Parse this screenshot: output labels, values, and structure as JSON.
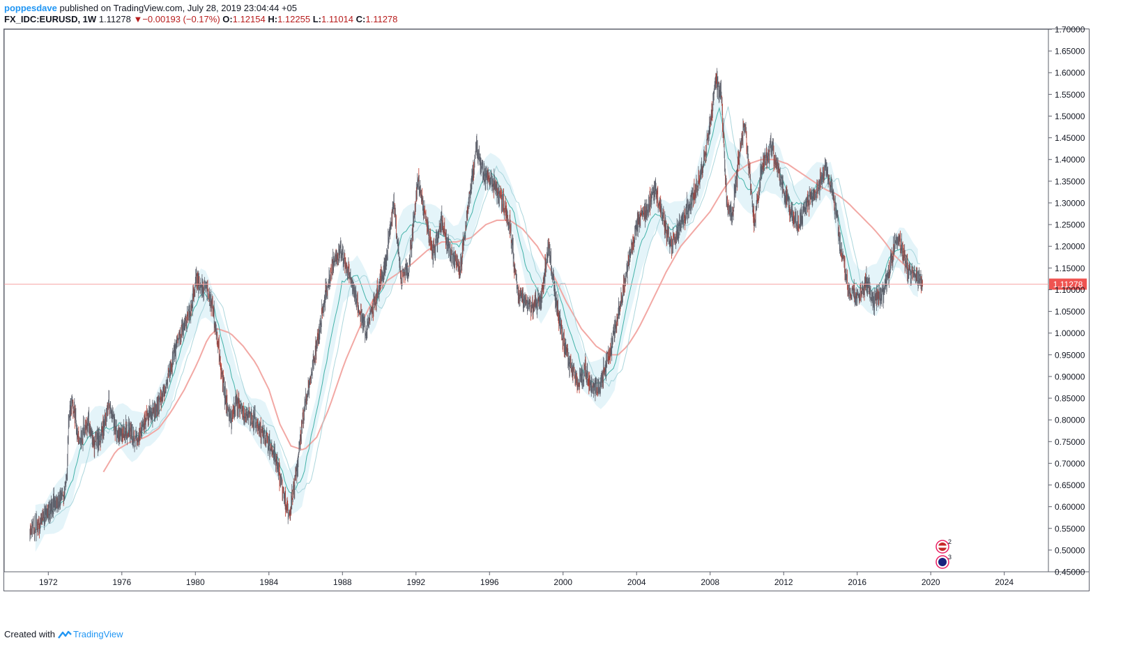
{
  "header": {
    "author": "poppesdave",
    "published": "published on TradingView.com, July 28, 2019 23:04:44 +05",
    "symbol": "FX_IDC:EURUSD, 1W",
    "last": "1.11278",
    "change": "−0.00193 (−0.17%)",
    "o_label": "O:",
    "o_value": "1.12154",
    "h_label": "H:",
    "h_value": "1.12255",
    "l_label": "L:",
    "l_value": "1.11014",
    "c_label": "C:",
    "c_value": "1.11278"
  },
  "footer": {
    "created": "Created with",
    "brand": "TradingView",
    "icon": "tradingview-logo-icon"
  },
  "events": [
    {
      "icon": "us-flag-icon",
      "count": "2"
    },
    {
      "icon": "eu-flag-icon",
      "count": "3"
    }
  ],
  "colors": {
    "candle": "#5d606b",
    "candle_red": "#c0392b",
    "ma_pink": "#f2a8a4",
    "ma_teal": "#26a69a",
    "cloud": "#d8f0f7",
    "price_line": "#f7a8a8",
    "price_label": "#ef5350"
  },
  "chart_data": {
    "type": "line",
    "title": "FX_IDC:EURUSD, 1W",
    "y_axis": {
      "side": "right",
      "min": 0.45,
      "max": 1.7,
      "step": 0.05,
      "tick_decimals": 5
    },
    "x_axis": {
      "min": 1969.6,
      "max": 2026.4,
      "ticks": [
        1972,
        1976,
        1980,
        1984,
        1988,
        1992,
        1996,
        2000,
        2004,
        2008,
        2012,
        2016,
        2020,
        2024
      ]
    },
    "last_price": 1.11278,
    "last_price_label": "1.11278",
    "series": [
      {
        "style": "price",
        "x": [
          1971.0,
          1971.5,
          1972.2,
          1972.8,
          1973.0,
          1973.1,
          1973.3,
          1973.7,
          1974.2,
          1974.5,
          1974.9,
          1975.3,
          1975.8,
          1976.3,
          1976.7,
          1977.3,
          1977.8,
          1978.3,
          1978.7,
          1979.2,
          1979.8,
          1980.0,
          1980.4,
          1980.7,
          1981.0,
          1981.3,
          1981.6,
          1981.9,
          1982.3,
          1982.7,
          1983.1,
          1983.5,
          1983.9,
          1984.3,
          1984.7,
          1985.1,
          1985.5,
          1985.9,
          1986.3,
          1986.7,
          1987.1,
          1987.5,
          1987.9,
          1988.4,
          1988.8,
          1989.3,
          1989.8,
          1990.3,
          1990.8,
          1991.2,
          1991.6,
          1992.1,
          1992.6,
          1992.9,
          1993.4,
          1993.9,
          1994.4,
          1994.8,
          1995.3,
          1995.7,
          1996.2,
          1996.7,
          1997.1,
          1997.5,
          1997.8,
          1998.3,
          1998.8,
          1999.2,
          1999.7,
          2000.2,
          2000.8,
          2001.2,
          2001.6,
          2002.0,
          2002.5,
          2003.0,
          2003.5,
          2004.0,
          2004.5,
          2005.0,
          2005.5,
          2005.9,
          2006.4,
          2006.9,
          2007.4,
          2007.9,
          2008.3,
          2008.6,
          2008.9,
          2009.2,
          2009.6,
          2009.9,
          2010.4,
          2010.8,
          2011.3,
          2011.8,
          2012.4,
          2012.8,
          2013.3,
          2013.8,
          2014.3,
          2014.7,
          2015.1,
          2015.5,
          2016.0,
          2016.5,
          2016.9,
          2017.3,
          2017.8,
          2018.1,
          2018.4,
          2018.8,
          2019.2,
          2019.57
        ],
        "y": [
          0.54,
          0.56,
          0.6,
          0.62,
          0.66,
          0.8,
          0.84,
          0.75,
          0.8,
          0.74,
          0.77,
          0.84,
          0.76,
          0.78,
          0.75,
          0.8,
          0.82,
          0.87,
          0.93,
          1.0,
          1.06,
          1.13,
          1.1,
          1.1,
          1.04,
          0.95,
          0.86,
          0.8,
          0.84,
          0.81,
          0.8,
          0.78,
          0.75,
          0.72,
          0.65,
          0.58,
          0.68,
          0.82,
          0.9,
          1.0,
          1.09,
          1.16,
          1.19,
          1.13,
          1.07,
          1.0,
          1.08,
          1.15,
          1.3,
          1.12,
          1.15,
          1.35,
          1.25,
          1.18,
          1.26,
          1.18,
          1.15,
          1.28,
          1.43,
          1.36,
          1.35,
          1.3,
          1.25,
          1.1,
          1.08,
          1.06,
          1.08,
          1.2,
          1.05,
          0.95,
          0.88,
          0.92,
          0.87,
          0.88,
          0.95,
          1.05,
          1.15,
          1.25,
          1.28,
          1.33,
          1.25,
          1.2,
          1.25,
          1.3,
          1.35,
          1.45,
          1.58,
          1.55,
          1.3,
          1.27,
          1.42,
          1.48,
          1.25,
          1.38,
          1.43,
          1.36,
          1.28,
          1.25,
          1.3,
          1.33,
          1.38,
          1.32,
          1.2,
          1.1,
          1.08,
          1.12,
          1.07,
          1.08,
          1.15,
          1.22,
          1.2,
          1.14,
          1.13,
          1.11278
        ]
      },
      {
        "style": "ma_fast",
        "color": "#26a69a",
        "x": [
          1971.3,
          1972.0,
          1972.8,
          1973.3,
          1973.8,
          1974.5,
          1975.2,
          1975.9,
          1976.6,
          1977.5,
          1978.3,
          1979.0,
          1979.7,
          1980.4,
          1981.0,
          1981.6,
          1982.3,
          1983.0,
          1983.8,
          1984.5,
          1985.1,
          1985.8,
          1986.5,
          1987.2,
          1988.0,
          1988.8,
          1989.6,
          1990.4,
          1991.2,
          1992.0,
          1992.8,
          1993.6,
          1994.4,
          1995.2,
          1995.9,
          1996.6,
          1997.3,
          1998.0,
          1998.8,
          1999.6,
          2000.4,
          2001.2,
          2002.0,
          2002.8,
          2003.5,
          2004.2,
          2005.0,
          2005.8,
          2006.5,
          2007.2,
          2007.9,
          2008.5,
          2009.0,
          2009.6,
          2010.3,
          2011.0,
          2011.7,
          2012.4,
          2013.1,
          2013.8,
          2014.5,
          2015.1,
          2015.7,
          2016.4,
          2017.1,
          2017.8,
          2018.4,
          2019.0,
          2019.5
        ],
        "y": [
          0.55,
          0.58,
          0.61,
          0.66,
          0.74,
          0.77,
          0.78,
          0.79,
          0.76,
          0.78,
          0.84,
          0.93,
          1.03,
          1.1,
          1.06,
          0.96,
          0.85,
          0.81,
          0.78,
          0.71,
          0.63,
          0.66,
          0.8,
          0.95,
          1.12,
          1.13,
          1.05,
          1.12,
          1.22,
          1.26,
          1.24,
          1.22,
          1.2,
          1.3,
          1.38,
          1.34,
          1.28,
          1.15,
          1.08,
          1.12,
          1.0,
          0.9,
          0.88,
          0.92,
          1.07,
          1.2,
          1.28,
          1.24,
          1.25,
          1.32,
          1.42,
          1.52,
          1.4,
          1.36,
          1.32,
          1.38,
          1.38,
          1.3,
          1.3,
          1.34,
          1.36,
          1.24,
          1.12,
          1.1,
          1.1,
          1.18,
          1.2,
          1.15,
          1.13
        ]
      },
      {
        "style": "ma_slow",
        "color": "#f2a8a4",
        "x": [
          1975.0,
          1975.7,
          1976.5,
          1977.3,
          1978.0,
          1978.7,
          1979.4,
          1980.1,
          1980.7,
          1981.2,
          1981.9,
          1982.6,
          1983.3,
          1984.0,
          1984.6,
          1985.2,
          1985.9,
          1986.6,
          1987.3,
          1988.1,
          1988.9,
          1989.7,
          1990.4,
          1991.1,
          1991.8,
          1992.6,
          1993.4,
          1994.2,
          1995.0,
          1995.8,
          1996.4,
          1997.1,
          1997.8,
          1998.6,
          1999.4,
          2000.2,
          2001.0,
          2001.8,
          2002.5,
          2003.0,
          2003.5,
          2004.1,
          2004.8,
          2005.6,
          2006.4,
          2007.2,
          2008.0,
          2008.7,
          2009.4,
          2010.1,
          2010.8,
          2011.5,
          2012.2,
          2012.9,
          2013.6,
          2014.3,
          2014.9,
          2015.5,
          2016.2,
          2016.9,
          2017.5,
          2018.0,
          2018.5,
          2019.0,
          2019.4
        ],
        "y": [
          0.68,
          0.73,
          0.75,
          0.76,
          0.78,
          0.82,
          0.87,
          0.93,
          0.99,
          1.01,
          1.0,
          0.97,
          0.93,
          0.87,
          0.79,
          0.74,
          0.73,
          0.76,
          0.83,
          0.93,
          1.01,
          1.08,
          1.12,
          1.14,
          1.16,
          1.19,
          1.21,
          1.21,
          1.22,
          1.25,
          1.26,
          1.26,
          1.24,
          1.2,
          1.14,
          1.07,
          1.01,
          0.97,
          0.95,
          0.95,
          0.97,
          1.01,
          1.07,
          1.14,
          1.2,
          1.24,
          1.28,
          1.33,
          1.37,
          1.39,
          1.4,
          1.4,
          1.39,
          1.37,
          1.35,
          1.33,
          1.32,
          1.3,
          1.27,
          1.24,
          1.21,
          1.18,
          1.16,
          1.14,
          1.13
        ]
      }
    ]
  }
}
